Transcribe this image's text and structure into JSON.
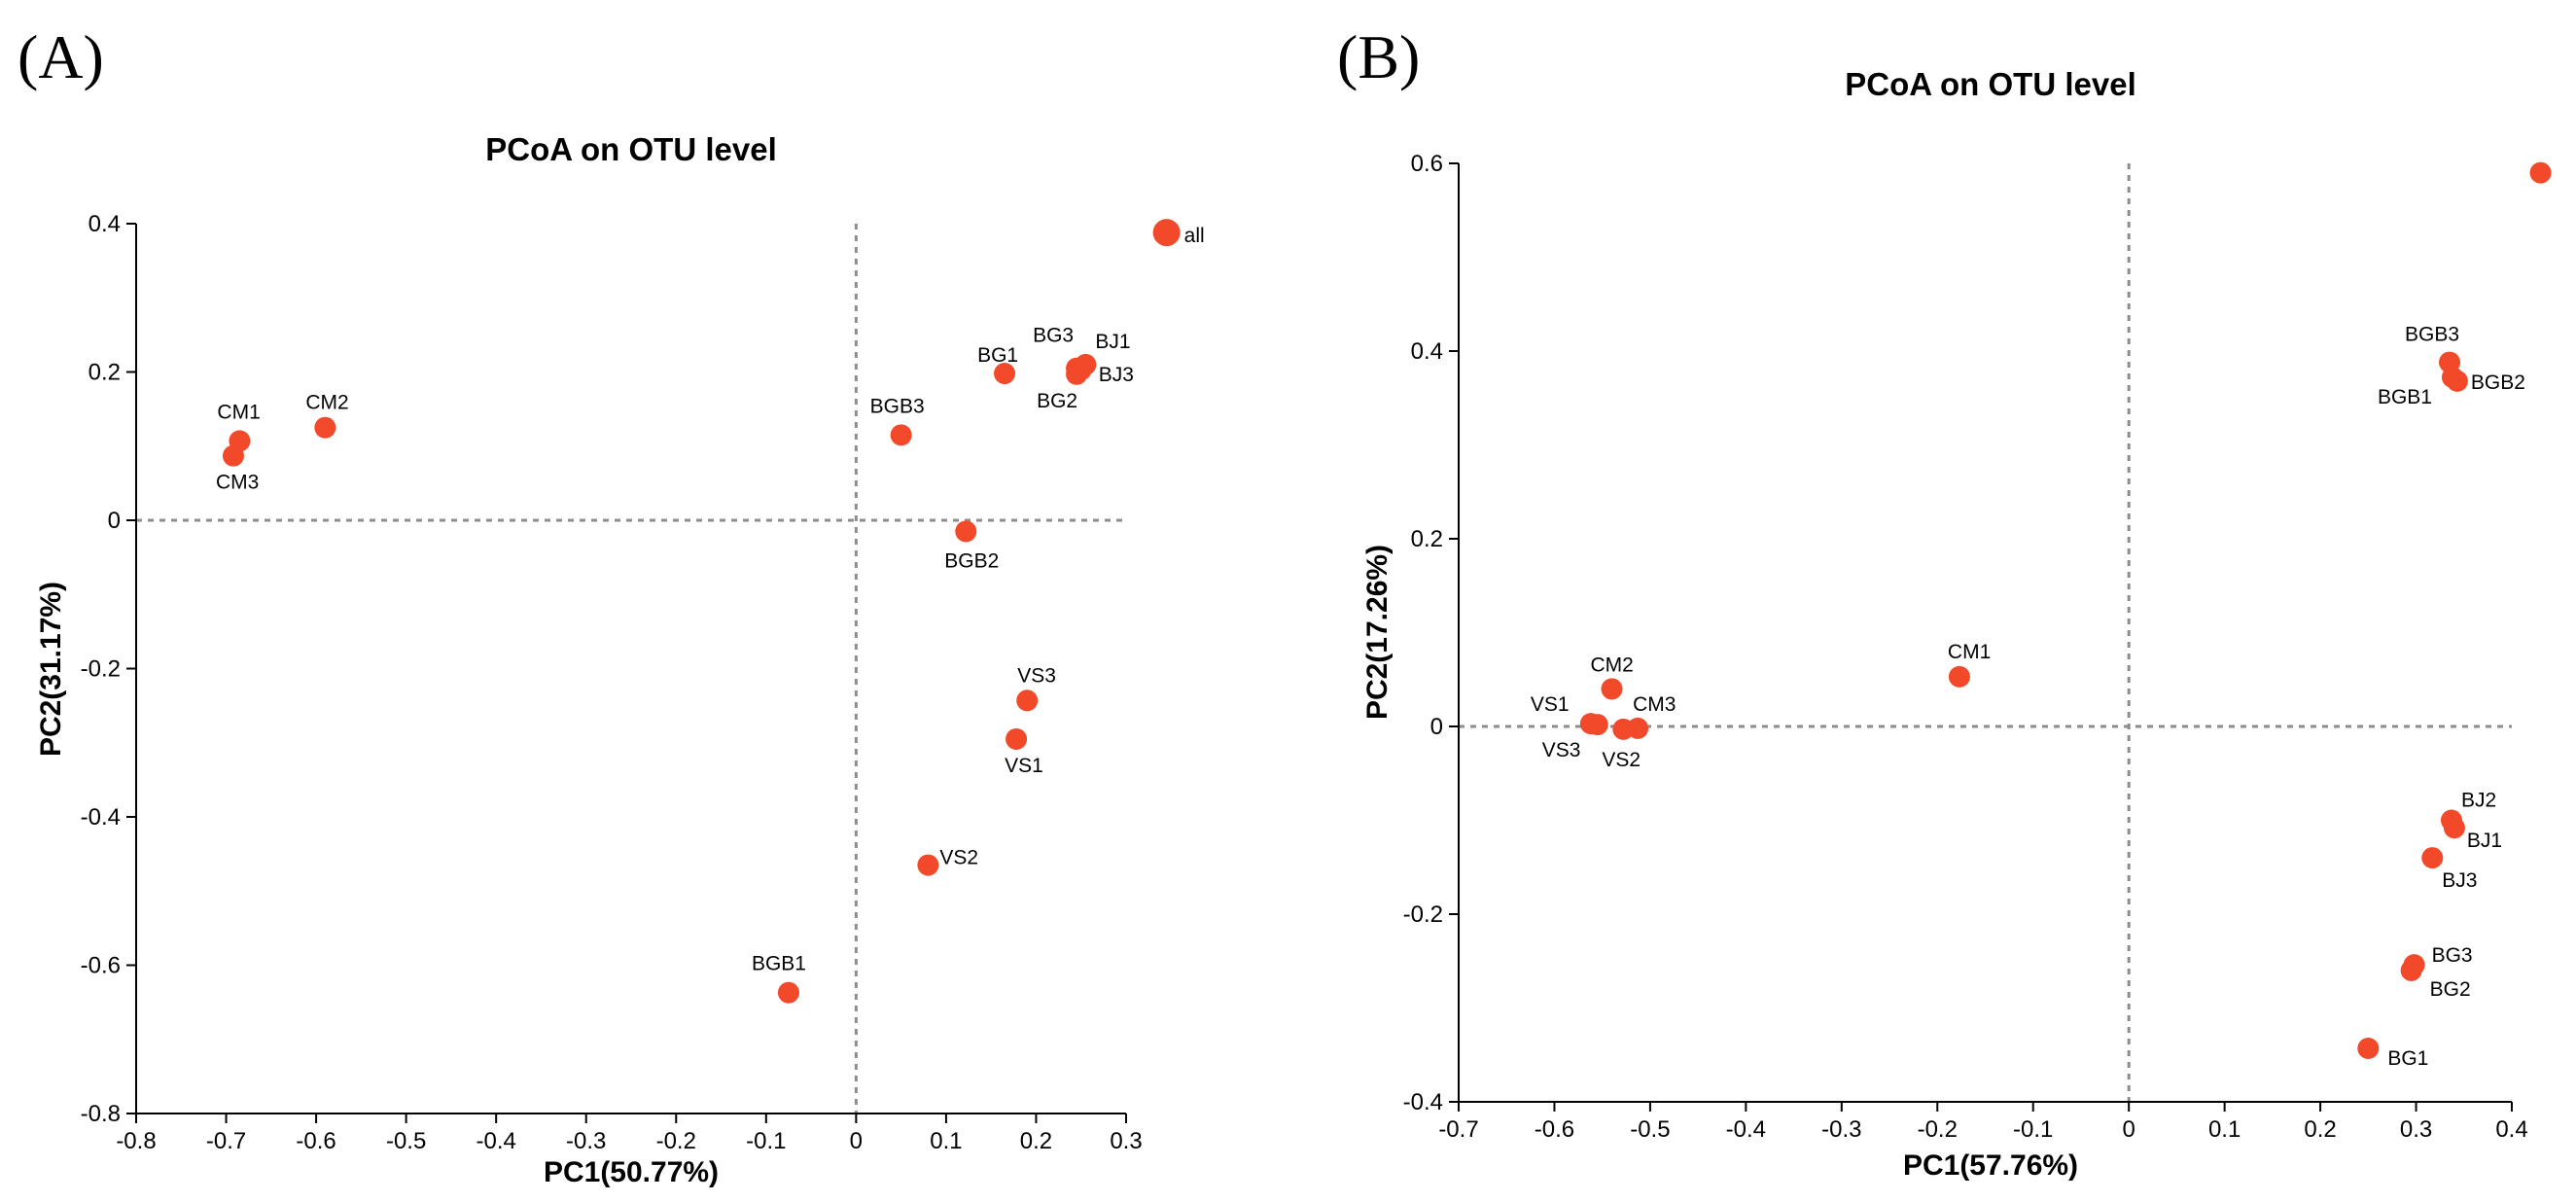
{
  "chart_data": [
    {
      "type": "scatter",
      "panel": "(A)",
      "title": "PCoA on OTU level",
      "xlabel": "PC1(50.77%)",
      "ylabel": "PC2(31.17%)",
      "xlim": [
        -0.8,
        0.3
      ],
      "ylim": [
        -0.8,
        0.4
      ],
      "xticks": [
        "-0.8",
        "-0.7",
        "-0.6",
        "-0.5",
        "-0.4",
        "-0.3",
        "-0.2",
        "-0.1",
        "0",
        "0.1",
        "0.2",
        "0.3"
      ],
      "yticks": [
        "-0.8",
        "-0.6",
        "-0.4",
        "-0.2",
        "0",
        "0.2",
        "0.4"
      ],
      "point_color": "#f2492a",
      "points": [
        {
          "label": "all",
          "x": 0.345,
          "y": 0.388
        },
        {
          "label": "BG1",
          "x": 0.165,
          "y": 0.198
        },
        {
          "label": "BG3",
          "x": 0.245,
          "y": 0.205
        },
        {
          "label": "BJ1",
          "x": 0.255,
          "y": 0.21
        },
        {
          "label": "BJ3",
          "x": 0.25,
          "y": 0.203
        },
        {
          "label": "BG2",
          "x": 0.245,
          "y": 0.197
        },
        {
          "label": "BGB3",
          "x": 0.05,
          "y": 0.115
        },
        {
          "label": "BGB2",
          "x": 0.122,
          "y": -0.015
        },
        {
          "label": "VS3",
          "x": 0.19,
          "y": -0.243
        },
        {
          "label": "VS1",
          "x": 0.178,
          "y": -0.295
        },
        {
          "label": "VS2",
          "x": 0.08,
          "y": -0.465
        },
        {
          "label": "BGB1",
          "x": -0.075,
          "y": -0.637
        },
        {
          "label": "CM1",
          "x": -0.685,
          "y": 0.107
        },
        {
          "label": "CM3",
          "x": -0.692,
          "y": 0.087
        },
        {
          "label": "CM2",
          "x": -0.59,
          "y": 0.125
        }
      ]
    },
    {
      "type": "scatter",
      "panel": "(B)",
      "title": "PCoA on OTU level",
      "xlabel": "PC1(57.76%)",
      "ylabel": "PC2(17.26%)",
      "xlim": [
        -0.7,
        0.4
      ],
      "ylim": [
        -0.4,
        0.6
      ],
      "xticks": [
        "-0.7",
        "-0.6",
        "-0.5",
        "-0.4",
        "-0.3",
        "-0.2",
        "-0.1",
        "0",
        "0.1",
        "0.2",
        "0.3",
        "0.4"
      ],
      "yticks": [
        "-0.4",
        "-0.2",
        "0",
        "0.2",
        "0.4",
        "0.6"
      ],
      "point_color": "#f2492a",
      "points": [
        {
          "label": "",
          "x": 0.43,
          "y": 0.59
        },
        {
          "label": "BGB3",
          "x": 0.335,
          "y": 0.388
        },
        {
          "label": "BGB1",
          "x": 0.338,
          "y": 0.372
        },
        {
          "label": "BGB2",
          "x": 0.343,
          "y": 0.368
        },
        {
          "label": "CM1",
          "x": -0.177,
          "y": 0.053
        },
        {
          "label": "CM2",
          "x": -0.54,
          "y": 0.04
        },
        {
          "label": "CM3",
          "x": -0.513,
          "y": -0.002
        },
        {
          "label": "VS1",
          "x": -0.562,
          "y": 0.003
        },
        {
          "label": "VS3",
          "x": -0.555,
          "y": 0.002
        },
        {
          "label": "VS2",
          "x": -0.528,
          "y": -0.003
        },
        {
          "label": "BJ2",
          "x": 0.337,
          "y": -0.1
        },
        {
          "label": "BJ1",
          "x": 0.34,
          "y": -0.108
        },
        {
          "label": "BJ3",
          "x": 0.317,
          "y": -0.14
        },
        {
          "label": "BG3",
          "x": 0.298,
          "y": -0.254
        },
        {
          "label": "BG2",
          "x": 0.295,
          "y": -0.26
        },
        {
          "label": "BG1",
          "x": 0.25,
          "y": -0.343
        }
      ]
    }
  ]
}
